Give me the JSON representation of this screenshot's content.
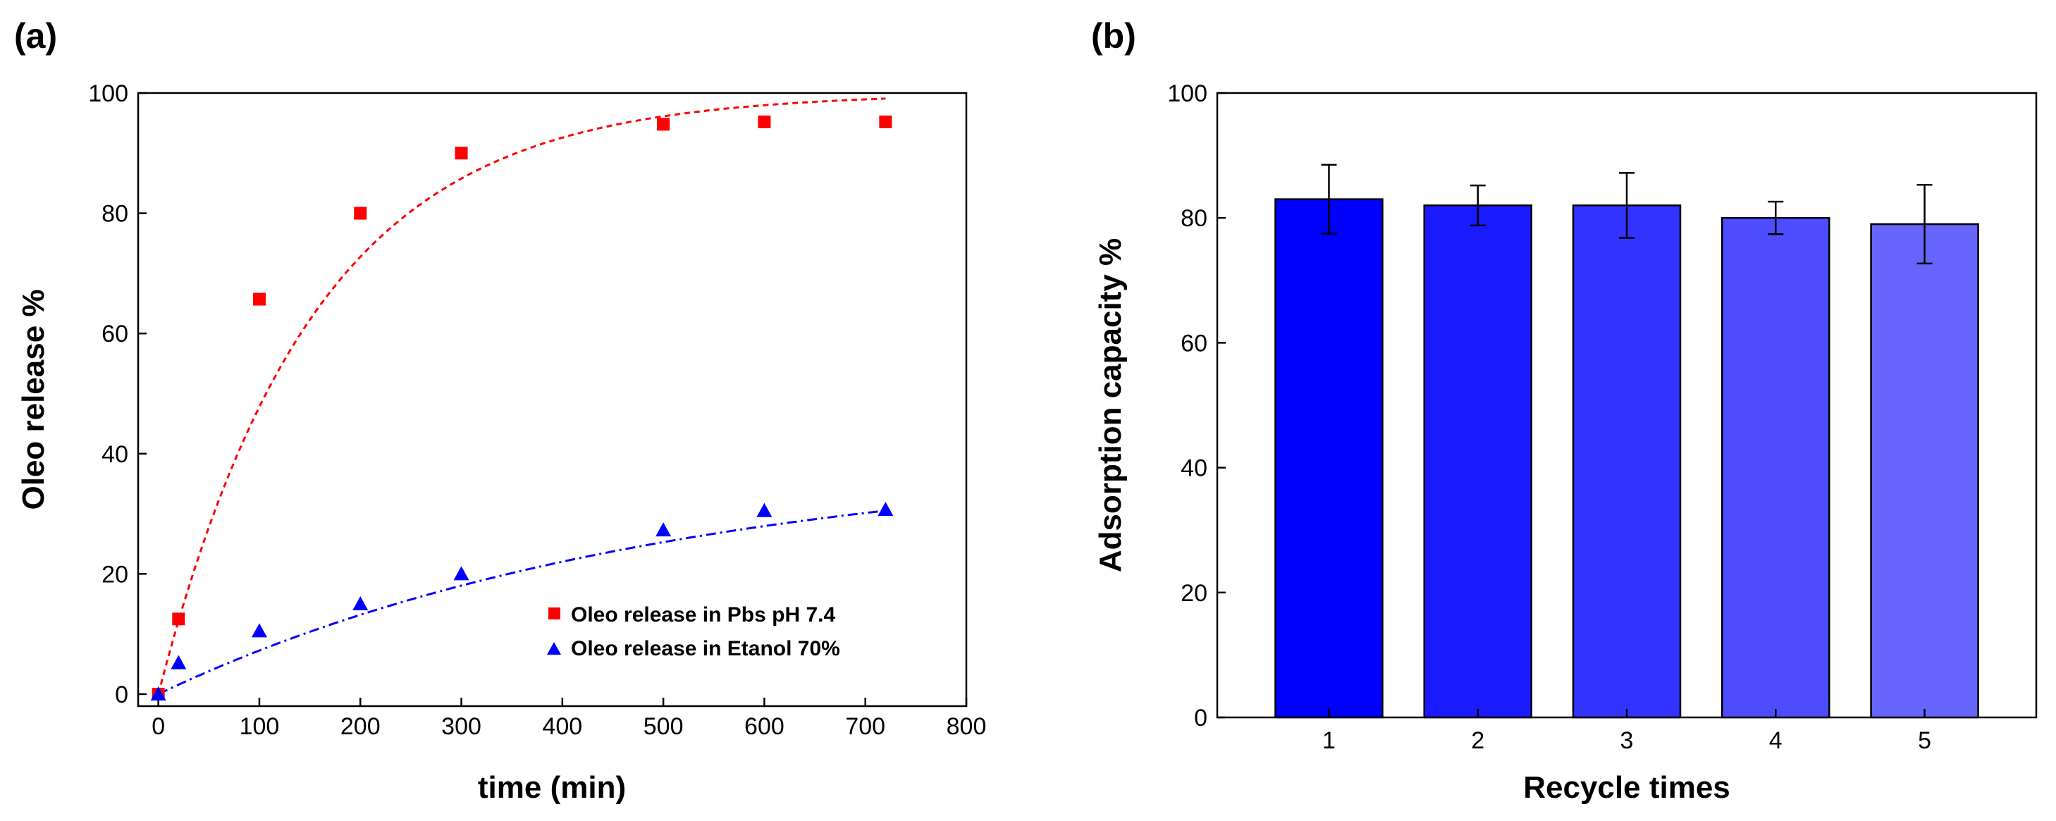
{
  "chart_data": [
    {
      "type": "scatter",
      "panel_label": "(a)",
      "xlabel": "time (min)",
      "ylabel": "Oleo release %",
      "xlim": [
        -20,
        800
      ],
      "ylim": [
        -2,
        100
      ],
      "xticks": [
        0,
        100,
        200,
        300,
        400,
        500,
        600,
        700,
        800
      ],
      "yticks": [
        0,
        20,
        40,
        60,
        80,
        100
      ],
      "legend_position": "bottom-right",
      "series": [
        {
          "name": "Oleo release in Pbs pH 7.4",
          "marker": "square",
          "color": "#ff0000",
          "x": [
            0,
            20,
            100,
            200,
            300,
            500,
            600,
            720
          ],
          "y": [
            0,
            12.5,
            65.7,
            80.0,
            90.0,
            94.8,
            95.2,
            95.2
          ],
          "fit": {
            "style": "dashed",
            "plateau": 100,
            "rate": 0.0065
          }
        },
        {
          "name": "Oleo release in Etanol 70%",
          "marker": "triangle",
          "color": "#0000ff",
          "x": [
            0,
            20,
            100,
            200,
            300,
            500,
            600,
            720
          ],
          "y": [
            0,
            5.2,
            10.5,
            15.0,
            20.0,
            27.3,
            30.5,
            30.7
          ],
          "fit": {
            "style": "dash-dot",
            "plateau": 40,
            "rate": 0.002
          }
        }
      ]
    },
    {
      "type": "bar",
      "panel_label": "(b)",
      "xlabel": "Recycle times",
      "ylabel": "Adsorption capacity %",
      "ylim": [
        0,
        100
      ],
      "yticks": [
        0,
        20,
        40,
        60,
        80,
        100
      ],
      "categories": [
        "1",
        "2",
        "3",
        "4",
        "5"
      ],
      "values": [
        83,
        82,
        82,
        80,
        79
      ],
      "errors": [
        5.5,
        3.2,
        5.2,
        2.6,
        6.3
      ],
      "colors": [
        "#0000ff",
        "#1a1aff",
        "#3333ff",
        "#4d4dff",
        "#6666ff"
      ]
    }
  ]
}
